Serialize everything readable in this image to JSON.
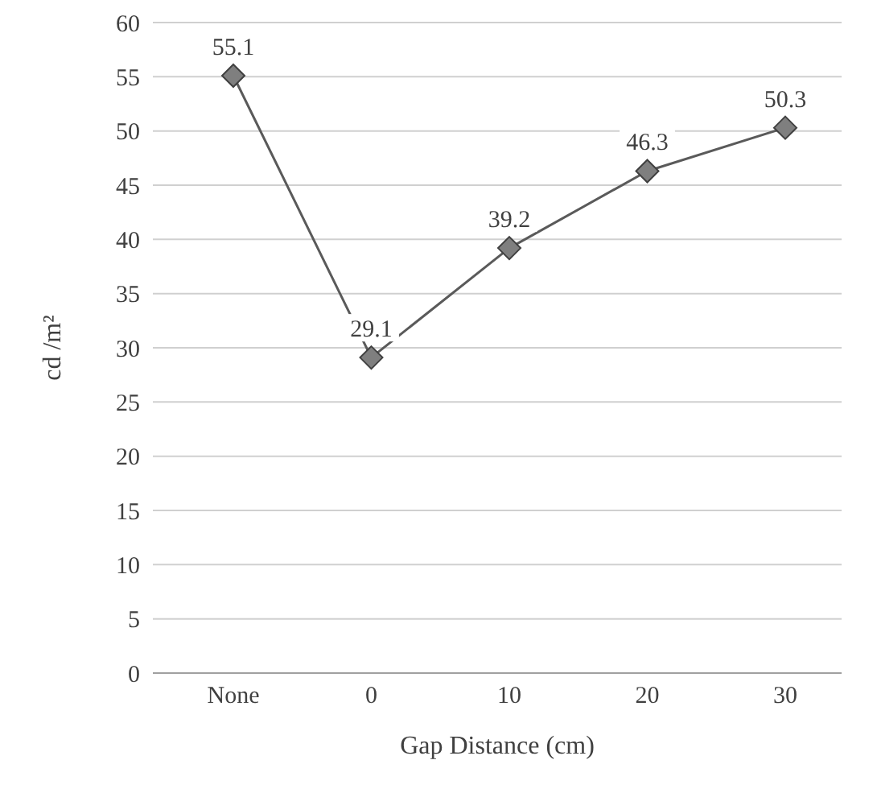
{
  "chart_data": {
    "type": "line",
    "xlabel": "Gap Distance (cm)",
    "ylabel": "cd /m²",
    "categories": [
      "None",
      "0",
      "10",
      "20",
      "30"
    ],
    "series": [
      {
        "color": "#5a5a5a",
        "values": [
          55.1,
          29.1,
          39.2,
          46.3,
          50.3
        ]
      }
    ],
    "ylim": [
      0,
      60
    ],
    "yticks": [
      0,
      5,
      10,
      15,
      20,
      25,
      30,
      35,
      40,
      45,
      50,
      55,
      60
    ],
    "grid": "y",
    "marker": "diamond",
    "line_style": "solid",
    "data_labels": true
  }
}
